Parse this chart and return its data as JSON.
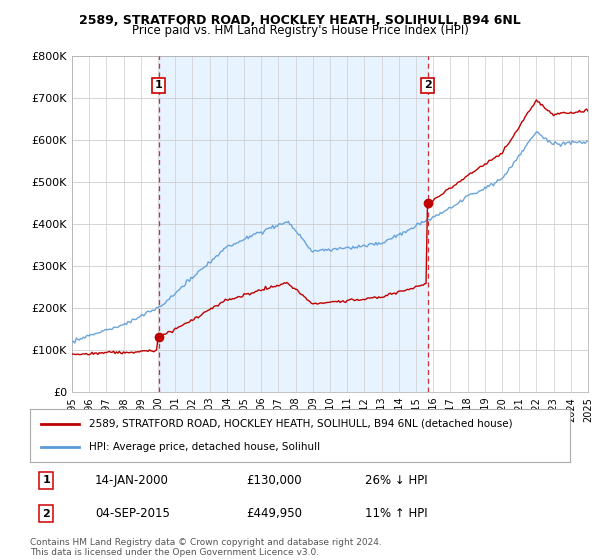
{
  "title1": "2589, STRATFORD ROAD, HOCKLEY HEATH, SOLIHULL, B94 6NL",
  "title2": "Price paid vs. HM Land Registry's House Price Index (HPI)",
  "ylim": [
    0,
    800000
  ],
  "yticks": [
    0,
    100000,
    200000,
    300000,
    400000,
    500000,
    600000,
    700000,
    800000
  ],
  "ytick_labels": [
    "£0",
    "£100K",
    "£200K",
    "£300K",
    "£400K",
    "£500K",
    "£600K",
    "£700K",
    "£800K"
  ],
  "hpi_color": "#5b9bd5",
  "price_color": "#c00000",
  "shade_color": "#ddeeff",
  "marker1_year": 2000.04,
  "marker1_price": 130000,
  "marker1_label": "1",
  "marker2_year": 2015.67,
  "marker2_price": 449950,
  "marker2_label": "2",
  "vline_color": "#cc0000",
  "legend_line1": "2589, STRATFORD ROAD, HOCKLEY HEATH, SOLIHULL, B94 6NL (detached house)",
  "legend_line2": "HPI: Average price, detached house, Solihull",
  "note1_label": "1",
  "note1_date": "14-JAN-2000",
  "note1_price": "£130,000",
  "note1_hpi": "26% ↓ HPI",
  "note2_label": "2",
  "note2_date": "04-SEP-2015",
  "note2_price": "£449,950",
  "note2_hpi": "11% ↑ HPI",
  "footer": "Contains HM Land Registry data © Crown copyright and database right 2024.\nThis data is licensed under the Open Government Licence v3.0.",
  "background_color": "#ffffff",
  "grid_color": "#cccccc"
}
